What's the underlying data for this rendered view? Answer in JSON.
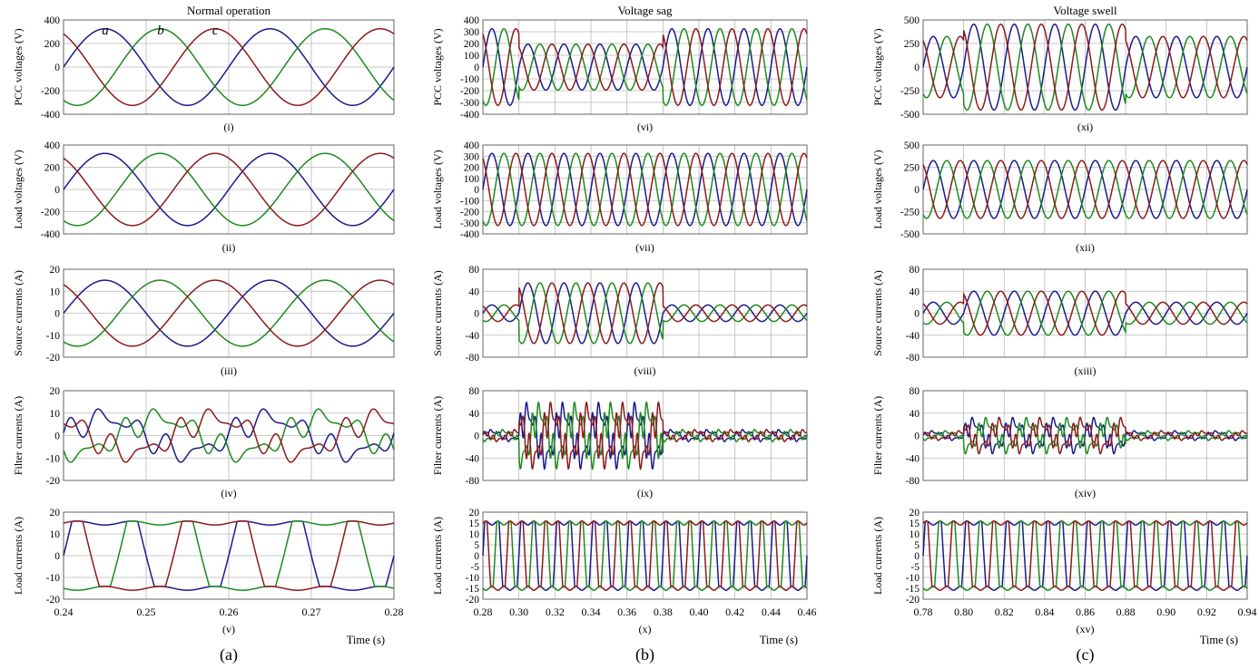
{
  "colors": {
    "a": "#1a1a8c",
    "b": "#1d8a1d",
    "c": "#8b1a1a",
    "grid": "#b8b8b8",
    "frame": "#666666"
  },
  "figure": {
    "column_letters": [
      "(a)",
      "(b)",
      "(c)"
    ],
    "phase_labels": [
      "a",
      "b",
      "c"
    ],
    "time_label": "Time (s)"
  },
  "chart_data": [
    {
      "type": "line",
      "title": "Normal operation",
      "x_ticks": [
        "0.24",
        "0.25",
        "0.26",
        "0.27",
        "0.28"
      ],
      "xlim": [
        0.24,
        0.28
      ],
      "panels": [
        {
          "label": "(i)",
          "ylabel": "PCC voltages (V)",
          "ylim": [
            -400,
            400
          ],
          "y_ticks": [
            "400",
            "200",
            "0",
            "-200",
            "-400"
          ],
          "series": [
            {
              "phase": "a",
              "amplitude": 325
            },
            {
              "phase": "b",
              "amplitude": 325
            },
            {
              "phase": "c",
              "amplitude": 325
            }
          ]
        },
        {
          "label": "(ii)",
          "ylabel": "Load voltages (V)",
          "ylim": [
            -400,
            400
          ],
          "y_ticks": [
            "400",
            "200",
            "0",
            "-200",
            "-400"
          ],
          "series": [
            {
              "phase": "a",
              "amplitude": 325
            },
            {
              "phase": "b",
              "amplitude": 325
            },
            {
              "phase": "c",
              "amplitude": 325
            }
          ]
        },
        {
          "label": "(iii)",
          "ylabel": "Source currents (A)",
          "ylim": [
            -20,
            20
          ],
          "y_ticks": [
            "20",
            "10",
            "0",
            "-10",
            "-20"
          ],
          "series": [
            {
              "phase": "a",
              "amplitude": 15
            },
            {
              "phase": "b",
              "amplitude": 15
            },
            {
              "phase": "c",
              "amplitude": 15
            }
          ]
        },
        {
          "label": "(iv)",
          "ylabel": "Filter currents (A)",
          "ylim": [
            -20,
            20
          ],
          "y_ticks": [
            "20",
            "10",
            "0",
            "-10",
            "-20"
          ],
          "series": [
            {
              "phase": "a",
              "amplitude": 11
            },
            {
              "phase": "b",
              "amplitude": 11
            },
            {
              "phase": "c",
              "amplitude": 11
            }
          ]
        },
        {
          "label": "(v)",
          "ylabel": "Load currents (A)",
          "ylim": [
            -20,
            20
          ],
          "y_ticks": [
            "20",
            "10",
            "0",
            "-10",
            "-20"
          ],
          "series": [
            {
              "phase": "a",
              "amplitude": 15
            },
            {
              "phase": "b",
              "amplitude": 15
            },
            {
              "phase": "c",
              "amplitude": 15
            }
          ]
        }
      ]
    },
    {
      "type": "line",
      "title": "Voltage sag",
      "x_ticks": [
        "0.28",
        "0.30",
        "0.32",
        "0.34",
        "0.36",
        "0.38",
        "0.40",
        "0.42",
        "0.44",
        "0.46"
      ],
      "xlim": [
        0.28,
        0.46
      ],
      "event_interval": [
        0.3,
        0.38
      ],
      "panels": [
        {
          "label": "(vi)",
          "ylabel": "PCC voltages (V)",
          "ylim": [
            -400,
            400
          ],
          "y_ticks": [
            "400",
            "300",
            "200",
            "100",
            "0",
            "-100",
            "-200",
            "-300",
            "-400"
          ],
          "series": [
            {
              "phase": "a",
              "amplitude": 325,
              "event_amplitude": 195
            },
            {
              "phase": "b",
              "amplitude": 325,
              "event_amplitude": 195
            },
            {
              "phase": "c",
              "amplitude": 325,
              "event_amplitude": 195
            }
          ]
        },
        {
          "label": "(vii)",
          "ylabel": "Load voltages (V)",
          "ylim": [
            -400,
            400
          ],
          "y_ticks": [
            "400",
            "300",
            "200",
            "100",
            "0",
            "-100",
            "-200",
            "-300",
            "-400"
          ],
          "series": [
            {
              "phase": "a",
              "amplitude": 325
            },
            {
              "phase": "b",
              "amplitude": 325
            },
            {
              "phase": "c",
              "amplitude": 325
            }
          ]
        },
        {
          "label": "(viii)",
          "ylabel": "Source currents (A)",
          "ylim": [
            -80,
            80
          ],
          "y_ticks": [
            "80",
            "40",
            "0",
            "-40",
            "-80"
          ],
          "series": [
            {
              "phase": "a",
              "amplitude": 15,
              "event_amplitude": 55
            },
            {
              "phase": "b",
              "amplitude": 15,
              "event_amplitude": 55
            },
            {
              "phase": "c",
              "amplitude": 15,
              "event_amplitude": 55
            }
          ]
        },
        {
          "label": "(ix)",
          "ylabel": "Filter currents (A)",
          "ylim": [
            -80,
            80
          ],
          "y_ticks": [
            "80",
            "40",
            "0",
            "-40",
            "-80"
          ],
          "series": [
            {
              "phase": "a",
              "amplitude": 10,
              "event_amplitude": 55
            },
            {
              "phase": "b",
              "amplitude": 10,
              "event_amplitude": 55
            },
            {
              "phase": "c",
              "amplitude": 10,
              "event_amplitude": 55
            }
          ]
        },
        {
          "label": "(x)",
          "ylabel": "Load currents (A)",
          "ylim": [
            -20,
            20
          ],
          "y_ticks": [
            "20",
            "15",
            "10",
            "5",
            "0",
            "-5",
            "-10",
            "-15",
            "-20"
          ],
          "series": [
            {
              "phase": "a",
              "amplitude": 15
            },
            {
              "phase": "b",
              "amplitude": 15
            },
            {
              "phase": "c",
              "amplitude": 15
            }
          ]
        }
      ]
    },
    {
      "type": "line",
      "title": "Voltage swell",
      "x_ticks": [
        "0.78",
        "0.80",
        "0.82",
        "0.84",
        "0.86",
        "0.88",
        "0.90",
        "0.92",
        "0.94"
      ],
      "xlim": [
        0.78,
        0.94
      ],
      "event_interval": [
        0.8,
        0.88
      ],
      "panels": [
        {
          "label": "(xi)",
          "ylabel": "PCC voltages (V)",
          "ylim": [
            -500,
            500
          ],
          "y_ticks": [
            "500",
            "250",
            "0",
            "-250",
            "-500"
          ],
          "series": [
            {
              "phase": "a",
              "amplitude": 325,
              "event_amplitude": 455
            },
            {
              "phase": "b",
              "amplitude": 325,
              "event_amplitude": 455
            },
            {
              "phase": "c",
              "amplitude": 325,
              "event_amplitude": 455
            }
          ]
        },
        {
          "label": "(xii)",
          "ylabel": "Load voltages (V)",
          "ylim": [
            -500,
            500
          ],
          "y_ticks": [
            "500",
            "250",
            "0",
            "-250",
            "-500"
          ],
          "series": [
            {
              "phase": "a",
              "amplitude": 325
            },
            {
              "phase": "b",
              "amplitude": 325
            },
            {
              "phase": "c",
              "amplitude": 325
            }
          ]
        },
        {
          "label": "(xiii)",
          "ylabel": "Source currents (A)",
          "ylim": [
            -80,
            80
          ],
          "y_ticks": [
            "80",
            "40",
            "0",
            "-40",
            "-80"
          ],
          "series": [
            {
              "phase": "a",
              "amplitude": 20,
              "event_amplitude": 40
            },
            {
              "phase": "b",
              "amplitude": 20,
              "event_amplitude": 40
            },
            {
              "phase": "c",
              "amplitude": 20,
              "event_amplitude": 40
            }
          ]
        },
        {
          "label": "(xiv)",
          "ylabel": "Filter currents (A)",
          "ylim": [
            -80,
            80
          ],
          "y_ticks": [
            "80",
            "40",
            "0",
            "-40",
            "-80"
          ],
          "series": [
            {
              "phase": "a",
              "amplitude": 8,
              "event_amplitude": 30
            },
            {
              "phase": "b",
              "amplitude": 8,
              "event_amplitude": 30
            },
            {
              "phase": "c",
              "amplitude": 8,
              "event_amplitude": 30
            }
          ]
        },
        {
          "label": "(xv)",
          "ylabel": "Load currents (A)",
          "ylim": [
            -20,
            20
          ],
          "y_ticks": [
            "20",
            "15",
            "10",
            "5",
            "0",
            "-5",
            "-10",
            "-15",
            "-20"
          ],
          "series": [
            {
              "phase": "a",
              "amplitude": 15
            },
            {
              "phase": "b",
              "amplitude": 15
            },
            {
              "phase": "c",
              "amplitude": 15
            }
          ]
        }
      ]
    }
  ]
}
